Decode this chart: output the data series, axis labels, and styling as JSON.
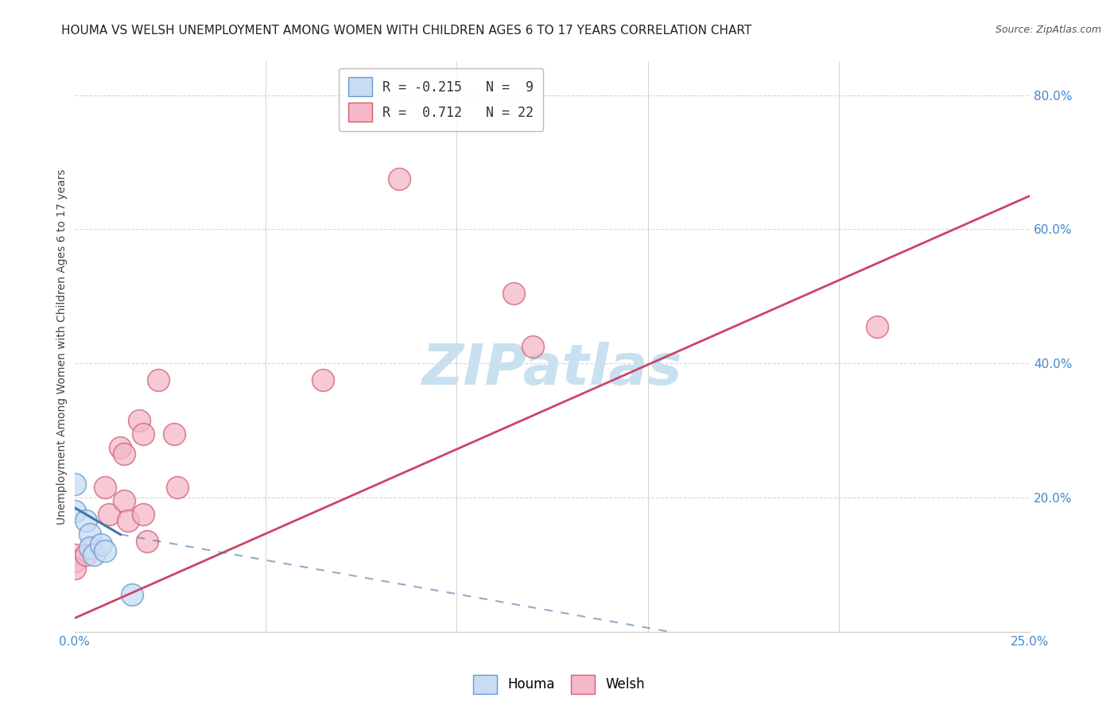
{
  "title": "HOUMA VS WELSH UNEMPLOYMENT AMONG WOMEN WITH CHILDREN AGES 6 TO 17 YEARS CORRELATION CHART",
  "source": "Source: ZipAtlas.com",
  "ylabel": "Unemployment Among Women with Children Ages 6 to 17 years",
  "xlim": [
    0.0,
    0.25
  ],
  "ylim": [
    0.0,
    0.85
  ],
  "xticks": [
    0.0,
    0.05,
    0.1,
    0.15,
    0.2,
    0.25
  ],
  "xticklabels": [
    "0.0%",
    "",
    "",
    "",
    "",
    "25.0%"
  ],
  "yticks": [
    0.0,
    0.2,
    0.4,
    0.6,
    0.8
  ],
  "yticklabels": [
    "",
    "20.0%",
    "40.0%",
    "60.0%",
    "80.0%"
  ],
  "legend_entries": [
    {
      "label": "R = -0.215   N =  9",
      "color": "#a8c8f0"
    },
    {
      "label": "R =  0.712   N = 22",
      "color": "#f4a0b0"
    }
  ],
  "houma_points": [
    [
      0.0,
      0.22
    ],
    [
      0.0,
      0.18
    ],
    [
      0.003,
      0.165
    ],
    [
      0.004,
      0.145
    ],
    [
      0.004,
      0.125
    ],
    [
      0.005,
      0.115
    ],
    [
      0.007,
      0.13
    ],
    [
      0.008,
      0.12
    ],
    [
      0.015,
      0.055
    ]
  ],
  "welsh_points": [
    [
      0.0,
      0.115
    ],
    [
      0.0,
      0.105
    ],
    [
      0.0,
      0.095
    ],
    [
      0.003,
      0.115
    ],
    [
      0.008,
      0.215
    ],
    [
      0.009,
      0.175
    ],
    [
      0.012,
      0.275
    ],
    [
      0.013,
      0.265
    ],
    [
      0.013,
      0.195
    ],
    [
      0.014,
      0.165
    ],
    [
      0.017,
      0.315
    ],
    [
      0.018,
      0.295
    ],
    [
      0.018,
      0.175
    ],
    [
      0.019,
      0.135
    ],
    [
      0.022,
      0.375
    ],
    [
      0.026,
      0.295
    ],
    [
      0.027,
      0.215
    ],
    [
      0.065,
      0.375
    ],
    [
      0.085,
      0.675
    ],
    [
      0.115,
      0.505
    ],
    [
      0.12,
      0.425
    ],
    [
      0.21,
      0.455
    ]
  ],
  "houma_color": "#c8dcf5",
  "houma_edge_color": "#6699cc",
  "welsh_color": "#f5b8c8",
  "welsh_edge_color": "#d06070",
  "houma_line_color": "#4477aa",
  "welsh_line_color": "#cc4466",
  "background_color": "#ffffff",
  "grid_color": "#cccccc",
  "watermark": "ZIPatlas",
  "watermark_color": "#c8e0f0",
  "title_fontsize": 11,
  "axis_label_fontsize": 10,
  "tick_fontsize": 11,
  "tick_color": "#4488cc"
}
